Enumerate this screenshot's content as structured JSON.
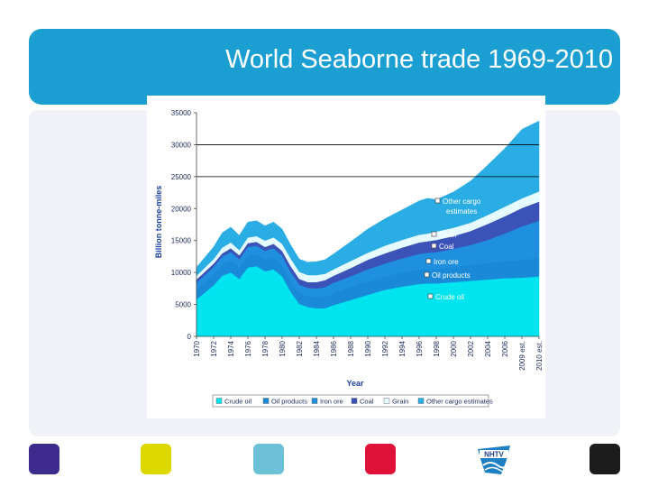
{
  "slide": {
    "title": "World Seaborne trade 1969-2010",
    "squares": [
      {
        "name": "purple-square",
        "color": "#3d2c8d"
      },
      {
        "name": "yellow-square",
        "color": "#dcd800"
      },
      {
        "name": "light-blue-square",
        "color": "#6cc0d8"
      },
      {
        "name": "red-square",
        "color": "#e0123a"
      },
      {
        "name": "black-square",
        "color": "#1c1c1c"
      }
    ],
    "logo": {
      "icon": "nhtv-logo-icon",
      "text": "NHTV"
    }
  },
  "chart_data": {
    "type": "area",
    "stacked": true,
    "xlabel": "Year",
    "ylabel": "Billion tonne-miles",
    "ylim": [
      0,
      35000
    ],
    "yticks": [
      0,
      5000,
      10000,
      15000,
      20000,
      25000,
      30000,
      35000
    ],
    "ytick_labels": [
      "0",
      "5000",
      "10000",
      "15000",
      "20000",
      "25000",
      "30000",
      "35000"
    ],
    "xlim": [
      1970,
      2010
    ],
    "xticks": [
      1970,
      1972,
      1974,
      1976,
      1978,
      1980,
      1982,
      1984,
      1986,
      1988,
      1990,
      1992,
      1994,
      1996,
      1998,
      2000,
      2002,
      2004,
      2006,
      2008,
      2010
    ],
    "xtick_labels": [
      "1970",
      "1972",
      "1974",
      "1976",
      "1978",
      "1980",
      "1982",
      "1984",
      "1986",
      "1988",
      "1990",
      "1992",
      "1994",
      "1996",
      "1998",
      "2000",
      "2002",
      "2004",
      "2006",
      "2009 est.",
      "2010 est."
    ],
    "gridlines_y": [
      25000,
      30000
    ],
    "legend_position": "bottom",
    "x": [
      1970,
      1972,
      1973,
      1974,
      1975,
      1976,
      1977,
      1978,
      1979,
      1980,
      1981,
      1982,
      1983,
      1984,
      1985,
      1986,
      1988,
      1990,
      1992,
      1994,
      1996,
      1997,
      1998,
      2000,
      2002,
      2004,
      2006,
      2008,
      2010
    ],
    "series": [
      {
        "name": "Crude oil",
        "color": "#00e4f0",
        "values": [
          5800,
          8000,
          9500,
          10000,
          9000,
          10800,
          11000,
          10200,
          10500,
          9400,
          7000,
          5100,
          4600,
          4400,
          4400,
          4900,
          5700,
          6500,
          7300,
          7800,
          8200,
          8300,
          8300,
          8500,
          8700,
          8900,
          9100,
          9200,
          9400
        ]
      },
      {
        "name": "Oil products",
        "color": "#1a8ad8",
        "values": [
          1600,
          1800,
          1800,
          1900,
          1800,
          1900,
          1900,
          1900,
          1900,
          1800,
          1700,
          1700,
          1700,
          1700,
          1800,
          1900,
          2000,
          2100,
          2100,
          2200,
          2300,
          2300,
          2300,
          2400,
          2500,
          2600,
          2700,
          2800,
          2900
        ]
      },
      {
        "name": "Iron ore",
        "color": "#1f90e0",
        "values": [
          1000,
          1100,
          1200,
          1300,
          1300,
          1300,
          1300,
          1300,
          1400,
          1400,
          1400,
          1300,
          1300,
          1400,
          1500,
          1600,
          1700,
          1900,
          2000,
          2200,
          2400,
          2500,
          2600,
          2800,
          3100,
          3600,
          4300,
          5200,
          5800
        ]
      },
      {
        "name": "Coal",
        "color": "#3b53b8",
        "values": [
          500,
          500,
          500,
          600,
          600,
          600,
          600,
          600,
          700,
          800,
          900,
          900,
          900,
          1000,
          1100,
          1100,
          1300,
          1500,
          1600,
          1700,
          1800,
          1800,
          1900,
          2000,
          2200,
          2500,
          2700,
          2900,
          3000
        ]
      },
      {
        "name": "Grain",
        "color": "#e6fbff",
        "values": [
          600,
          700,
          900,
          900,
          800,
          900,
          900,
          1000,
          1000,
          1100,
          1200,
          1100,
          1100,
          1100,
          1000,
          1000,
          1100,
          1100,
          1200,
          1200,
          1200,
          1200,
          1300,
          1300,
          1300,
          1400,
          1500,
          1500,
          1600
        ]
      },
      {
        "name": "Other cargo estimates",
        "color": "#2aace4",
        "values": [
          1300,
          1900,
          2300,
          2400,
          2300,
          2400,
          2400,
          2300,
          2400,
          2300,
          2100,
          2000,
          2000,
          2100,
          2200,
          2400,
          3000,
          3700,
          4200,
          4700,
          5300,
          5500,
          5000,
          5600,
          6500,
          7800,
          9100,
          10800,
          11000
        ]
      }
    ],
    "annotations": [
      "Other cargo estimates",
      "Grain",
      "Coal",
      "Iron ore",
      "Oil products",
      "Crude oil"
    ]
  }
}
